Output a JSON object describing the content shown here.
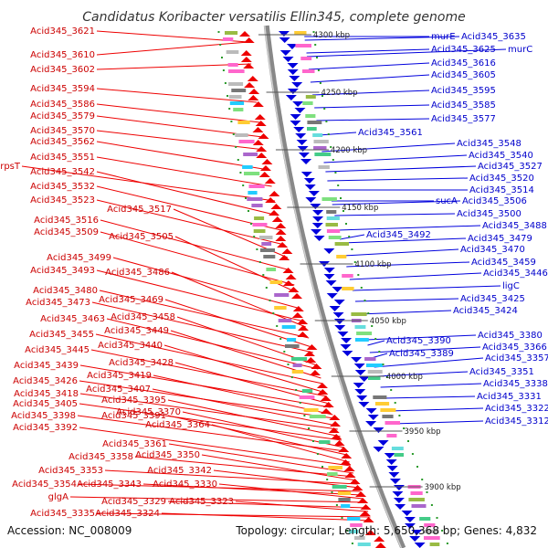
{
  "title": "Candidatus Koribacter versatilis Ellin345, complete genome",
  "footer": {
    "accession": "Accession: NC_008009",
    "topology": "Topology: circular; Length: 5,650,368 bp; Genes: 4,832"
  },
  "colors": {
    "forward": "#ee0000",
    "reverse": "#0000dd",
    "backbone": "#888888",
    "tick_mark": "#2a9a2a"
  },
  "ticks": [
    {
      "label": "4300 kbp"
    },
    {
      "label": "4250 kbp"
    },
    {
      "label": "4200 kbp"
    },
    {
      "label": "4150 kbp"
    },
    {
      "label": "4100 kbp"
    },
    {
      "label": "4050 kbp"
    },
    {
      "label": "4000 kbp"
    },
    {
      "label": "3950 kbp"
    },
    {
      "label": "3900 kbp"
    }
  ],
  "left_labels": [
    "Acid345_3621",
    "Acid345_3610",
    "Acid345_3602",
    "Acid345_3594",
    "Acid345_3586",
    "Acid345_3579",
    "Acid345_3570",
    "Acid345_3562",
    "Acid345_3551",
    "rpsT",
    "Acid345_3542",
    "Acid345_3532",
    "Acid345_3523",
    "Acid345_3517",
    "Acid345_3516",
    "Acid345_3509",
    "Acid345_3505",
    "Acid345_3499",
    "Acid345_3493",
    "Acid345_3486",
    "Acid345_3480",
    "Acid345_3469",
    "Acid345_3473",
    "Acid345_3458",
    "Acid345_3463",
    "Acid345_3449",
    "Acid345_3455",
    "Acid345_3440",
    "Acid345_3445",
    "Acid345_3428",
    "Acid345_3439",
    "Acid345_3419",
    "Acid345_3426",
    "Acid345_3407",
    "Acid345_3418",
    "Acid345_3395",
    "Acid345_3405",
    "Acid345_3370",
    "Acid345_3398",
    "Acid345_3391",
    "Acid345_3364",
    "Acid345_3392",
    "Acid345_3361",
    "Acid345_3358",
    "Acid345_3350",
    "Acid345_3353",
    "Acid345_3342",
    "Acid345_3354",
    "Acid345_3343",
    "Acid345_3330",
    "glgA",
    "Acid345_3329",
    "Acid345_3323",
    "Acid345_3335",
    "Acid345_3324"
  ],
  "right_labels": [
    "murE",
    "Acid345_3635",
    "Acid345_3625",
    "murC",
    "Acid345_3616",
    "Acid345_3605",
    "Acid345_3595",
    "Acid345_3585",
    "Acid345_3577",
    "Acid345_3561",
    "Acid345_3548",
    "Acid345_3540",
    "Acid345_3527",
    "Acid345_3520",
    "Acid345_3514",
    "sucA",
    "Acid345_3506",
    "Acid345_3500",
    "Acid345_3488",
    "Acid345_3492",
    "Acid345_3479",
    "Acid345_3470",
    "Acid345_3459",
    "Acid345_3446",
    "ligC",
    "Acid345_3425",
    "Acid345_3424",
    "Acid345_3380",
    "Acid345_3390",
    "Acid345_3366",
    "Acid345_3389",
    "Acid345_3357",
    "Acid345_3351",
    "Acid345_3338",
    "Acid345_3331",
    "Acid345_3322",
    "Acid345_3312"
  ]
}
